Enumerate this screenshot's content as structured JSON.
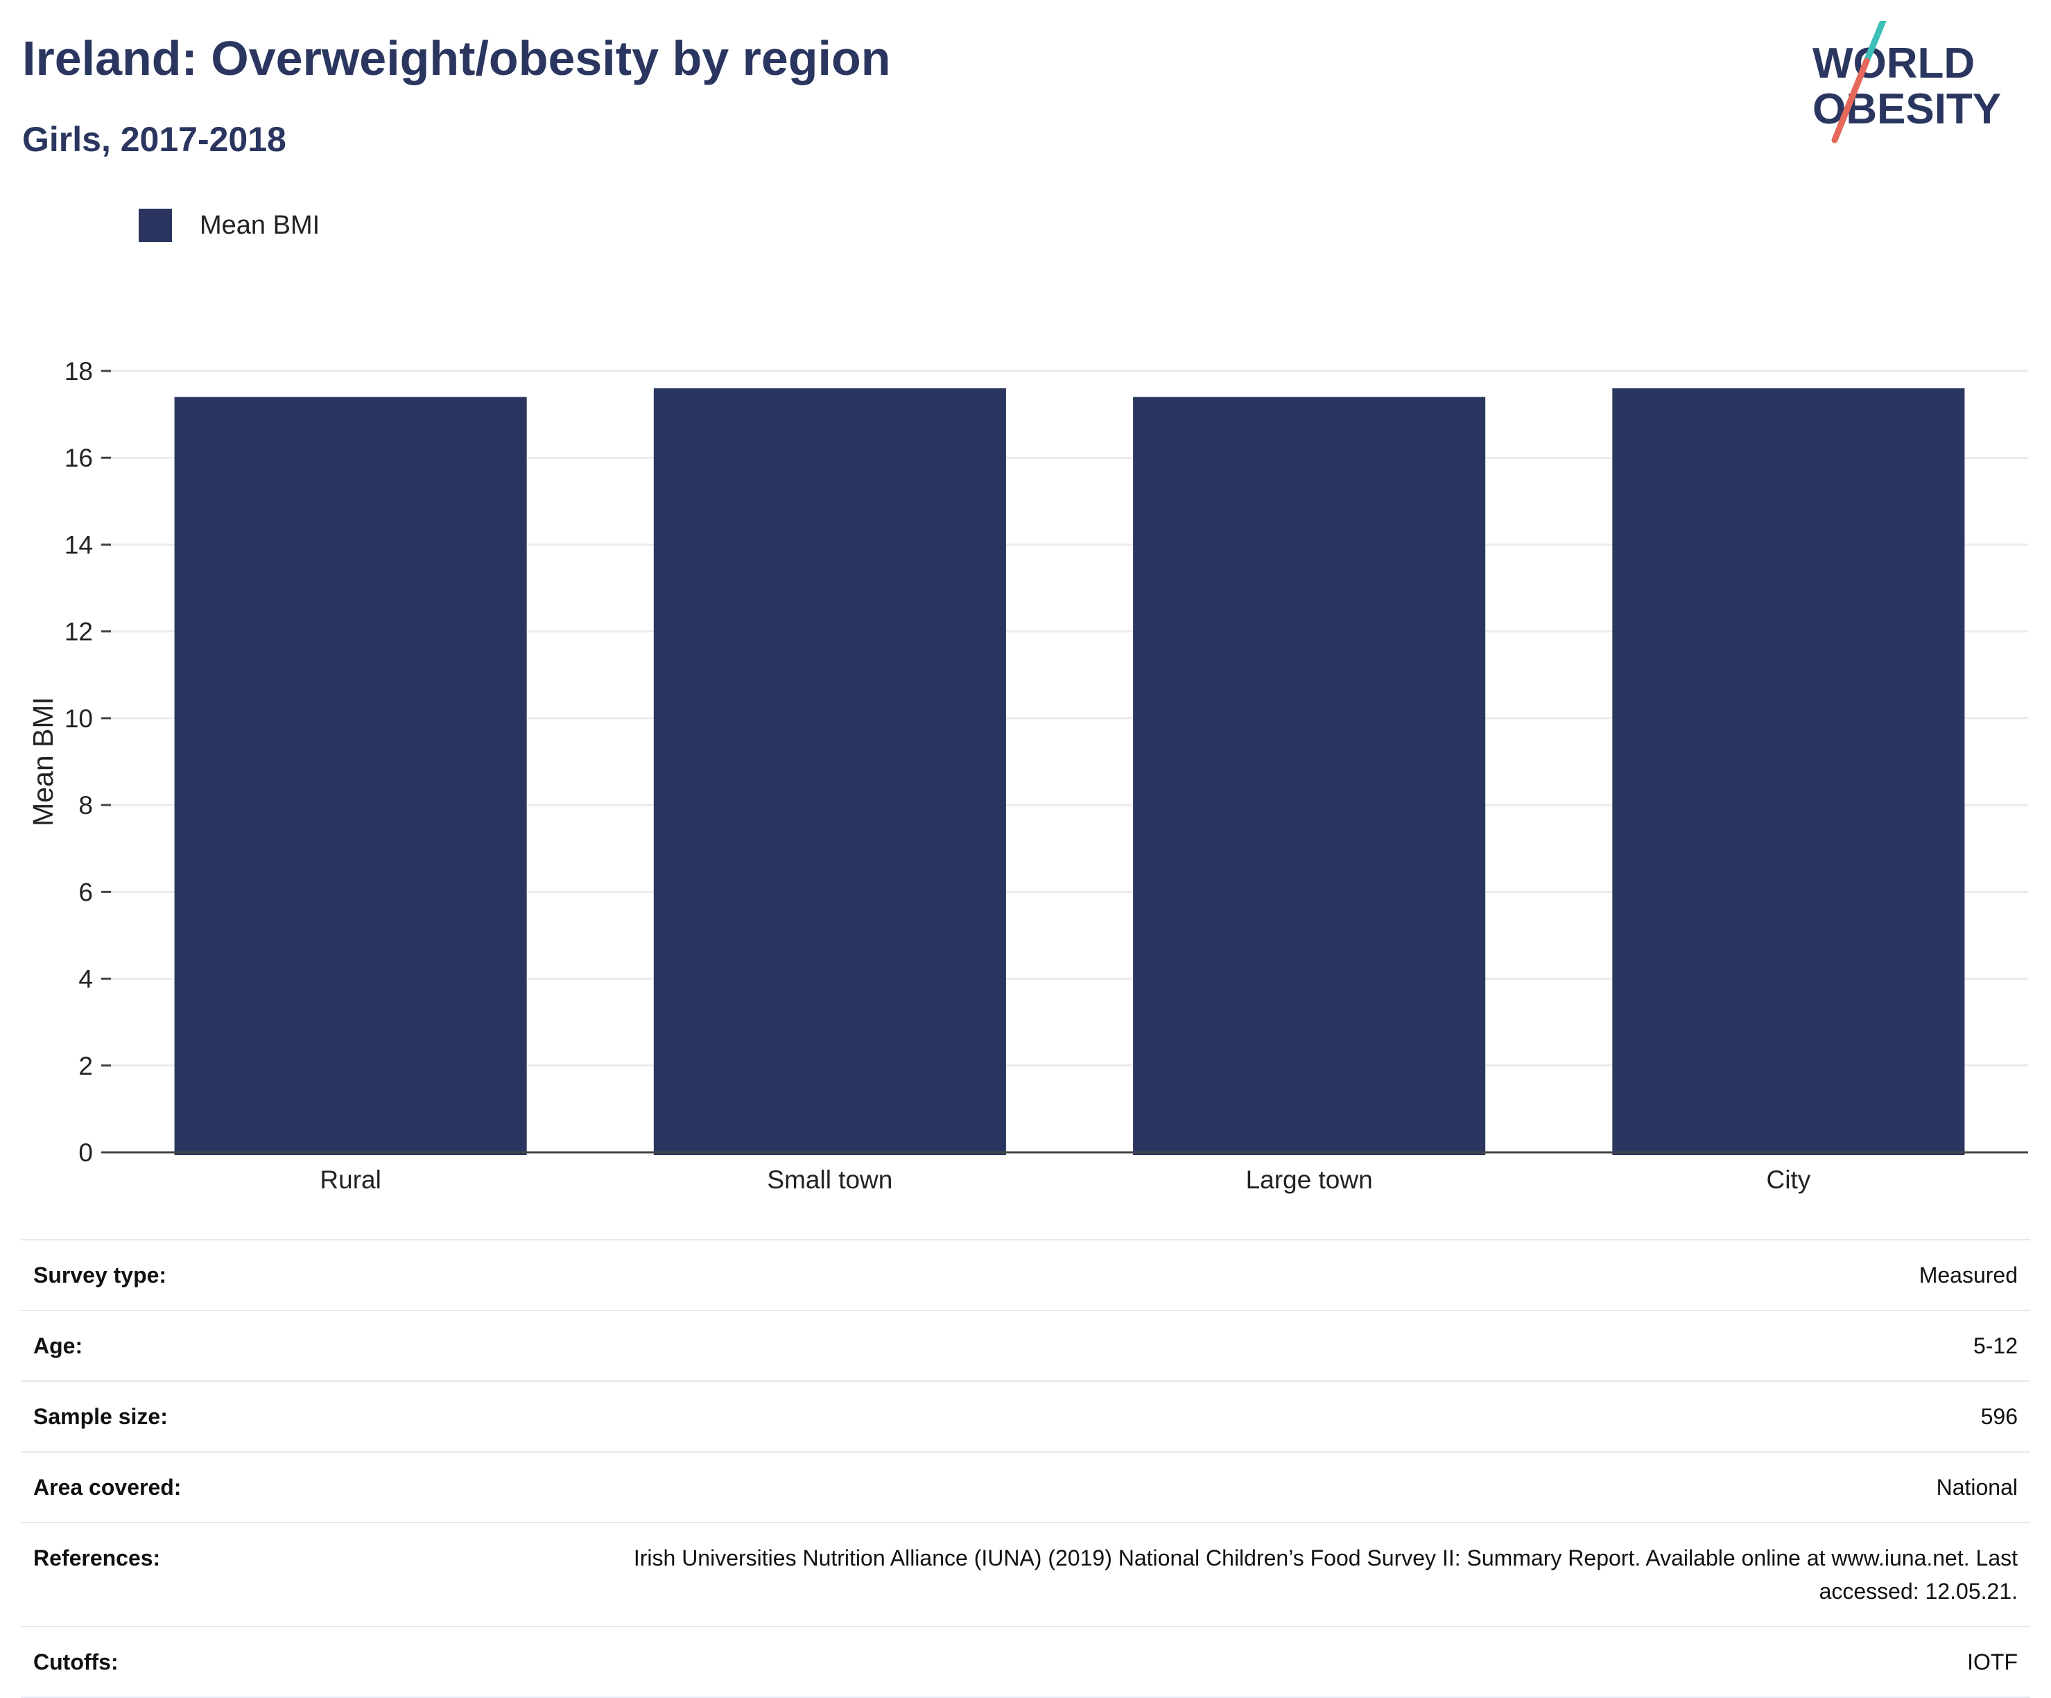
{
  "header": {
    "title": "Ireland: Overweight/obesity by region",
    "subtitle": "Girls, 2017-2018"
  },
  "logo": {
    "line1": "WORLD",
    "line2": "OBESITY",
    "colors": {
      "text": "#2a365f",
      "slash_top": "#3dbfb8",
      "slash_bottom": "#e5685a"
    }
  },
  "legend": {
    "items": [
      {
        "label": "Mean BMI",
        "color": "#2a365f"
      }
    ]
  },
  "chart_data": {
    "type": "bar",
    "title": "Ireland: Overweight/obesity by region",
    "subtitle": "Girls, 2017-2018",
    "categories": [
      "Rural",
      "Small town",
      "Large town",
      "City"
    ],
    "series": [
      {
        "name": "Mean BMI",
        "values": [
          17.4,
          17.6,
          17.4,
          17.6
        ],
        "color": "#2a365f"
      }
    ],
    "xlabel": "",
    "ylabel": "Mean BMI",
    "ylim": [
      0,
      18
    ],
    "yticks": [
      0,
      2,
      4,
      6,
      8,
      10,
      12,
      14,
      16,
      18
    ],
    "grid": true,
    "legend_position": "top-left"
  },
  "info": {
    "rows": [
      {
        "label": "Survey type:",
        "value": "Measured"
      },
      {
        "label": "Age:",
        "value": "5-12"
      },
      {
        "label": "Sample size:",
        "value": "596"
      },
      {
        "label": "Area covered:",
        "value": "National"
      },
      {
        "label": "References:",
        "value": "Irish Universities Nutrition Alliance (IUNA) (2019) National Children’s Food Survey II: Summary Report. Available online at www.iuna.net. Last accessed: 12.05.21."
      },
      {
        "label": "Cutoffs:",
        "value": "IOTF"
      }
    ]
  }
}
